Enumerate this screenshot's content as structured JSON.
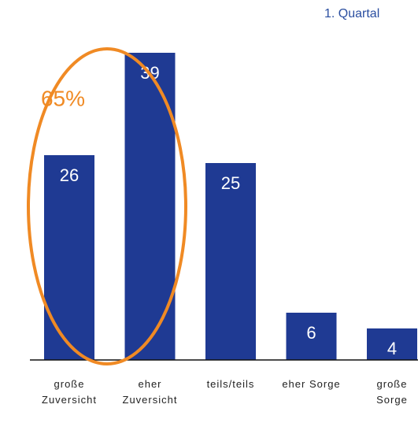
{
  "chart_data": {
    "type": "bar",
    "subtitle": "1. Quartal",
    "categories": [
      "große\nZuversicht",
      "eher\nZuversicht",
      "teils/teils",
      "eher Sorge",
      "große\nSorge"
    ],
    "values": [
      26,
      39,
      25,
      6,
      4
    ],
    "color": "#1f3a93",
    "ylim": [
      0,
      40
    ],
    "annotation": "65%",
    "annotation_color": "#f08a24"
  }
}
